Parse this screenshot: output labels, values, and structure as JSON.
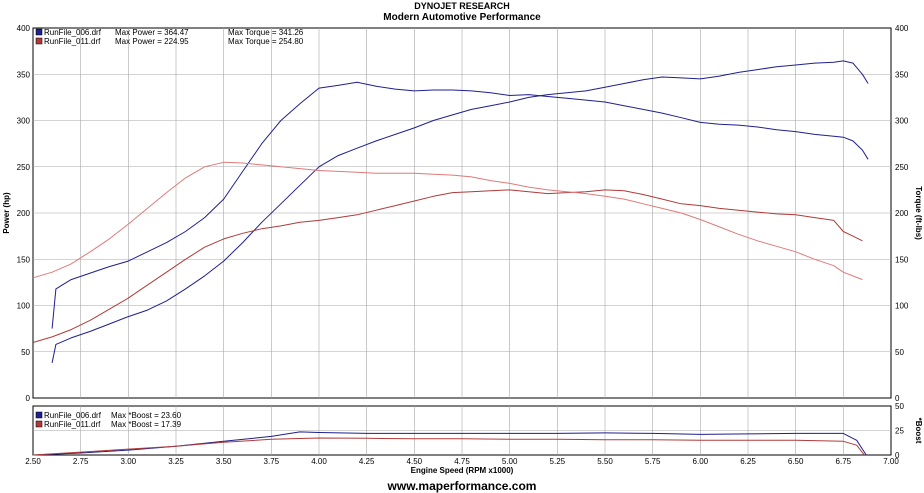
{
  "header": {
    "title": "DYNOJET RESEARCH",
    "subtitle": "Modern Automotive Performance"
  },
  "footer": {
    "url": "www.maperformance.com"
  },
  "colors": {
    "blue": "#1f1f8f",
    "red": "#b03a3a",
    "light_red": "#e07a7a"
  },
  "chart_data": [
    {
      "type": "line",
      "title": "DYNOJET RESEARCH",
      "subtitle": "Modern Automotive Performance",
      "xlabel": "Engine Speed (RPM x1000)",
      "ylabel": "Power (hp)",
      "y2label": "Torque (ft-lbs)",
      "xlim": [
        2.5,
        7.0
      ],
      "ylim": [
        0,
        400
      ],
      "y2lim": [
        0,
        400
      ],
      "xticks": [
        "2.50",
        "2.75",
        "3.00",
        "3.25",
        "3.50",
        "3.75",
        "4.00",
        "4.25",
        "4.50",
        "4.75",
        "5.00",
        "5.25",
        "5.50",
        "5.75",
        "6.00",
        "6.25",
        "6.50",
        "6.75",
        "7.00"
      ],
      "yticks": [
        "0",
        "50",
        "100",
        "150",
        "200",
        "250",
        "300",
        "350",
        "400"
      ],
      "grid": true,
      "legend_position": "top-left",
      "legend": [
        {
          "file": "RunFile_006.drf",
          "power_text": "Max Power = 364.47",
          "torque_text": "Max Torque = 341.26",
          "color": "#1f1f8f"
        },
        {
          "file": "RunFile_011.drf",
          "power_text": "Max Power = 224.95",
          "torque_text": "Max Torque = 254.80",
          "color": "#b03a3a"
        }
      ],
      "series": [
        {
          "name": "RunFile_006.drf Power",
          "color": "#1f1f8f",
          "x": [
            2.6,
            2.62,
            2.7,
            2.8,
            2.9,
            3.0,
            3.1,
            3.2,
            3.3,
            3.4,
            3.5,
            3.6,
            3.7,
            3.8,
            3.9,
            4.0,
            4.1,
            4.2,
            4.3,
            4.4,
            4.5,
            4.6,
            4.7,
            4.8,
            4.9,
            5.0,
            5.1,
            5.2,
            5.3,
            5.4,
            5.5,
            5.6,
            5.7,
            5.8,
            5.9,
            6.0,
            6.1,
            6.2,
            6.3,
            6.4,
            6.5,
            6.6,
            6.7,
            6.75,
            6.8,
            6.85,
            6.88
          ],
          "y": [
            38,
            58,
            65,
            72,
            80,
            88,
            95,
            105,
            118,
            132,
            148,
            168,
            190,
            210,
            230,
            250,
            262,
            270,
            278,
            285,
            292,
            300,
            306,
            312,
            316,
            320,
            325,
            328,
            330,
            332,
            336,
            340,
            344,
            347,
            346,
            345,
            348,
            352,
            355,
            358,
            360,
            362,
            363,
            364.47,
            362,
            350,
            340
          ]
        },
        {
          "name": "RunFile_006.drf Torque",
          "color": "#1f1f8f",
          "x": [
            2.6,
            2.62,
            2.7,
            2.8,
            2.9,
            3.0,
            3.1,
            3.2,
            3.3,
            3.4,
            3.5,
            3.6,
            3.7,
            3.8,
            3.9,
            4.0,
            4.1,
            4.2,
            4.3,
            4.4,
            4.5,
            4.6,
            4.7,
            4.8,
            4.9,
            5.0,
            5.1,
            5.2,
            5.3,
            5.4,
            5.5,
            5.6,
            5.7,
            5.8,
            5.9,
            6.0,
            6.1,
            6.2,
            6.3,
            6.4,
            6.5,
            6.6,
            6.7,
            6.75,
            6.8,
            6.85,
            6.88
          ],
          "y": [
            75,
            118,
            128,
            135,
            142,
            148,
            158,
            168,
            180,
            195,
            215,
            245,
            275,
            300,
            318,
            335,
            338,
            341.26,
            337,
            334,
            332,
            333,
            333,
            332,
            330,
            327,
            328,
            326,
            324,
            322,
            320,
            316,
            312,
            308,
            303,
            298,
            296,
            295,
            293,
            290,
            288,
            285,
            283,
            282,
            278,
            268,
            258
          ]
        },
        {
          "name": "RunFile_011.drf Power",
          "color": "#b03a3a",
          "x": [
            2.5,
            2.6,
            2.7,
            2.8,
            2.9,
            3.0,
            3.1,
            3.2,
            3.3,
            3.4,
            3.5,
            3.6,
            3.7,
            3.8,
            3.9,
            4.0,
            4.1,
            4.2,
            4.3,
            4.4,
            4.5,
            4.6,
            4.7,
            4.8,
            4.9,
            5.0,
            5.1,
            5.2,
            5.3,
            5.4,
            5.5,
            5.6,
            5.7,
            5.8,
            5.9,
            6.0,
            6.1,
            6.2,
            6.3,
            6.4,
            6.5,
            6.6,
            6.7,
            6.75,
            6.8,
            6.85
          ],
          "y": [
            60,
            66,
            74,
            84,
            96,
            108,
            122,
            136,
            150,
            163,
            172,
            178,
            183,
            186,
            190,
            192,
            195,
            198,
            203,
            208,
            213,
            218,
            222,
            223,
            224,
            224.95,
            223,
            221,
            222,
            223,
            225,
            224,
            220,
            215,
            210,
            208,
            205,
            203,
            201,
            199,
            198,
            195,
            192,
            180,
            175,
            170
          ]
        },
        {
          "name": "RunFile_011.drf Torque",
          "color": "#e07a7a",
          "x": [
            2.5,
            2.6,
            2.7,
            2.8,
            2.9,
            3.0,
            3.1,
            3.2,
            3.3,
            3.4,
            3.5,
            3.6,
            3.7,
            3.8,
            3.9,
            4.0,
            4.1,
            4.2,
            4.3,
            4.4,
            4.5,
            4.6,
            4.7,
            4.8,
            4.9,
            5.0,
            5.1,
            5.2,
            5.3,
            5.4,
            5.5,
            5.6,
            5.7,
            5.8,
            5.9,
            6.0,
            6.1,
            6.2,
            6.3,
            6.4,
            6.5,
            6.6,
            6.7,
            6.75,
            6.8,
            6.85
          ],
          "y": [
            130,
            136,
            145,
            158,
            172,
            188,
            205,
            222,
            238,
            250,
            254.8,
            254,
            252,
            250,
            248,
            246,
            245,
            244,
            243,
            243,
            243,
            242,
            241,
            239,
            235,
            232,
            228,
            225,
            223,
            221,
            218,
            215,
            210,
            205,
            200,
            193,
            185,
            177,
            170,
            164,
            158,
            150,
            143,
            136,
            132,
            128
          ]
        }
      ]
    },
    {
      "type": "line",
      "xlabel": "Engine Speed (RPM x1000)",
      "ylabel": "*Boost",
      "xlim": [
        2.5,
        7.0
      ],
      "ylim": [
        0,
        50
      ],
      "yticks": [
        "0",
        "25",
        "50"
      ],
      "xticks": [
        "2.50",
        "2.75",
        "3.00",
        "3.25",
        "3.50",
        "3.75",
        "4.00",
        "4.25",
        "4.50",
        "4.75",
        "5.00",
        "5.25",
        "5.50",
        "5.75",
        "6.00",
        "6.25",
        "6.50",
        "6.75",
        "7.00"
      ],
      "grid": true,
      "legend_position": "top-left",
      "legend": [
        {
          "file": "RunFile_006.drf",
          "text": "Max *Boost = 23.60",
          "color": "#1f1f8f"
        },
        {
          "file": "RunFile_011.drf",
          "text": "Max *Boost = 17.39",
          "color": "#b03a3a"
        }
      ],
      "series": [
        {
          "name": "RunFile_006.drf *Boost",
          "color": "#1f1f8f",
          "x": [
            2.5,
            2.75,
            3.0,
            3.25,
            3.5,
            3.75,
            3.9,
            4.0,
            4.25,
            4.5,
            4.75,
            5.0,
            5.25,
            5.5,
            5.75,
            6.0,
            6.25,
            6.5,
            6.75,
            6.82,
            6.87
          ],
          "y": [
            0,
            2,
            5,
            9,
            14,
            19,
            23.6,
            23,
            22,
            22,
            22,
            22,
            22,
            22.5,
            22,
            21,
            21.5,
            22,
            22,
            15,
            0
          ]
        },
        {
          "name": "RunFile_011.drf *Boost",
          "color": "#b03a3a",
          "x": [
            2.5,
            2.75,
            3.0,
            3.25,
            3.5,
            3.75,
            4.0,
            4.25,
            4.5,
            4.75,
            5.0,
            5.25,
            5.5,
            5.75,
            6.0,
            6.25,
            6.5,
            6.75,
            6.82,
            6.86
          ],
          "y": [
            0,
            3,
            6,
            9,
            13,
            16,
            17.39,
            17,
            16.5,
            16.5,
            16,
            16,
            15.5,
            15.5,
            15,
            15,
            15,
            14,
            10,
            0
          ]
        }
      ]
    }
  ]
}
